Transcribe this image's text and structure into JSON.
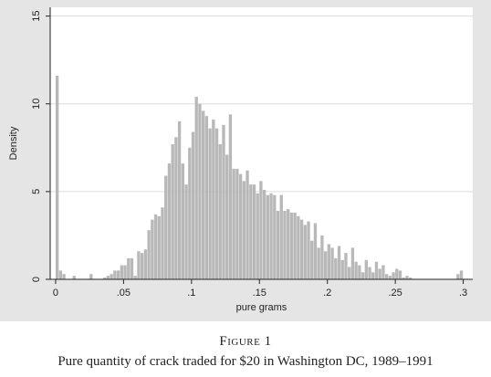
{
  "figure_label": "Figure 1",
  "caption": "Pure quantity of crack traded for $20 in Washington DC, 1989–1991",
  "chart_data": {
    "type": "bar",
    "title": "",
    "xlabel": "pure grams",
    "ylabel": "Density",
    "xlim": [
      -0.004,
      0.307
    ],
    "ylim": [
      0,
      15.5
    ],
    "x_ticks": [
      0,
      0.05,
      0.1,
      0.15,
      0.2,
      0.25,
      0.3
    ],
    "x_tick_labels": [
      "0",
      ".05",
      ".1",
      ".15",
      ".2",
      ".25",
      ".3"
    ],
    "y_ticks": [
      0,
      5,
      10,
      15
    ],
    "y_tick_labels": [
      "0",
      "5",
      "10",
      "15"
    ],
    "grid": "horizontal",
    "bin_width": 0.0025,
    "bin_start": 0,
    "values": [
      11.6,
      0.5,
      0.3,
      0,
      0,
      0.2,
      0,
      0,
      0,
      0,
      0.3,
      0,
      0,
      0,
      0.1,
      0.2,
      0.3,
      0.5,
      0.5,
      0.8,
      0.8,
      1.2,
      1.2,
      0.2,
      1.6,
      1.5,
      1.7,
      2.8,
      3.4,
      3.7,
      3.6,
      4.1,
      5.9,
      6.6,
      7.7,
      8.1,
      9.0,
      6.6,
      5.4,
      7.5,
      8.4,
      10.4,
      10.0,
      9.6,
      9.3,
      8.6,
      9.1,
      8.6,
      7.7,
      8.8,
      7.1,
      9.4,
      6.3,
      6.3,
      6.0,
      5.6,
      6.2,
      5.4,
      5.4,
      4.9,
      5.6,
      5.1,
      4.8,
      4.9,
      4.8,
      3.9,
      4.8,
      3.9,
      4.0,
      3.8,
      3.8,
      3.6,
      3.4,
      3.1,
      3.3,
      2.2,
      3.2,
      1.8,
      2.5,
      1.6,
      2.0,
      1.8,
      1.2,
      1.9,
      1.1,
      1.5,
      0.7,
      1.8,
      1.0,
      0.8,
      0.4,
      1.1,
      0.7,
      0.4,
      1.0,
      0.6,
      0.8,
      0.3,
      0.2,
      0.4,
      0.6,
      0.5,
      0.1,
      0.2,
      0.1,
      0,
      0,
      0,
      0,
      0,
      0,
      0,
      0,
      0,
      0,
      0,
      0,
      0,
      0.3,
      0.5
    ]
  },
  "colors": {
    "plot_background": "#ffffff",
    "outer_background": "#e5e5e5",
    "bar_fill": "#b8b8b8",
    "gridline": "#d9dde3",
    "axis": "#222222"
  }
}
